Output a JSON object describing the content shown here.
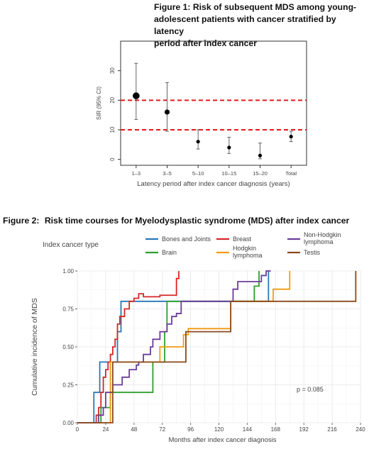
{
  "figure1": {
    "title_lines": [
      "Figure 1: Risk of subsequent MDS among young-",
      "adolescent patients with cancer stratified by latency",
      "period after index cancer"
    ]
  },
  "figure2": {
    "title_prefix": "Figure 2:",
    "title_text": "Risk time courses for Myelodysplastic syndrome (MDS) after index cancer",
    "legend_title": "Index cancer type",
    "p_value_label": "p = 0.085"
  },
  "colors": {
    "bones_and_joints": "#2878b5",
    "breast": "#d62728",
    "brain": "#2ca02c",
    "hodgkin": "#f39c12",
    "non_hodgkin": "#6a3d9a",
    "testis": "#8c4a1c",
    "reference_line": "#e41a1c",
    "grid": "#e6e6e6"
  },
  "chart_data": [
    {
      "type": "scatter",
      "xlabel": "Latency period after index cancer diagnosis (years)",
      "ylabel": "SIR (95% CI)",
      "categories": [
        "1–3",
        "3–5",
        "5–10",
        "10–15",
        "15–20",
        "Total"
      ],
      "values": [
        21.5,
        16,
        6,
        4,
        1.3,
        7.7
      ],
      "ci_lower": [
        13.5,
        9.5,
        3.5,
        2,
        0.2,
        6
      ],
      "ci_upper": [
        32.5,
        26,
        10,
        7.5,
        5.5,
        9.5
      ],
      "point_size": [
        3,
        2,
        1,
        1,
        1,
        1
      ],
      "reference_lines": [
        10,
        20
      ],
      "ylim": [
        -2,
        40
      ],
      "yticks": [
        0,
        10,
        20,
        30
      ],
      "grid": false
    },
    {
      "type": "line",
      "step": true,
      "xlabel": "Months after index cancer diagnosis",
      "ylabel": "Cumulative incidence of MDS",
      "xlim": [
        0,
        240
      ],
      "ylim": [
        0,
        1
      ],
      "xticks": [
        0,
        24,
        48,
        72,
        96,
        120,
        144,
        168,
        192,
        216,
        240
      ],
      "yticks": [
        0.0,
        0.25,
        0.5,
        0.75,
        1.0
      ],
      "ytick_labels": [
        "0.00",
        "0.25",
        "0.50",
        "0.75",
        "1.00"
      ],
      "grid": true,
      "legend_position": "top",
      "series": [
        {
          "name": "Bones and Joints",
          "color_key": "bones_and_joints",
          "x": [
            0,
            14,
            19,
            22,
            34,
            37,
            162
          ],
          "y": [
            0,
            0.2,
            0.4,
            0.4,
            0.6,
            0.8,
            1.0
          ]
        },
        {
          "name": "Breast",
          "color_key": "breast",
          "x": [
            0,
            16,
            18,
            20,
            22,
            24,
            26,
            28,
            30,
            32,
            34,
            36,
            40,
            44,
            48,
            52,
            56,
            70,
            84,
            86
          ],
          "y": [
            0,
            0.05,
            0.1,
            0.2,
            0.3,
            0.35,
            0.4,
            0.45,
            0.5,
            0.55,
            0.65,
            0.7,
            0.75,
            0.8,
            0.82,
            0.85,
            0.83,
            0.84,
            0.95,
            1.0
          ]
        },
        {
          "name": "Brain",
          "color_key": "brain",
          "x": [
            0,
            20,
            28,
            64,
            74,
            76,
            150,
            154
          ],
          "y": [
            0,
            0.1,
            0.2,
            0.4,
            0.6,
            0.8,
            0.9,
            1.0
          ]
        },
        {
          "name": "Hodgkin lymphoma",
          "color_key": "hodgkin",
          "x": [
            0,
            28,
            70,
            90,
            94,
            130,
            152,
            166,
            180
          ],
          "y": [
            0,
            0.4,
            0.5,
            0.58,
            0.62,
            0.8,
            0.8,
            0.88,
            1.0
          ]
        },
        {
          "name": "Non-Hodgkin lymphoma",
          "color_key": "non_hodgkin",
          "x": [
            0,
            18,
            22,
            24,
            30,
            38,
            44,
            50,
            52,
            56,
            62,
            64,
            70,
            76,
            80,
            84,
            88,
            110,
            132,
            136,
            156,
            160,
            164
          ],
          "y": [
            0,
            0.05,
            0.1,
            0.2,
            0.25,
            0.3,
            0.35,
            0.38,
            0.4,
            0.45,
            0.5,
            0.55,
            0.6,
            0.65,
            0.7,
            0.72,
            0.8,
            0.8,
            0.88,
            0.93,
            0.97,
            1.0,
            1.0
          ]
        },
        {
          "name": "Testis",
          "color_key": "testis",
          "x": [
            0,
            30,
            92,
            130,
            234,
            236
          ],
          "y": [
            0,
            0.4,
            0.6,
            0.8,
            0.8,
            1.0
          ]
        }
      ]
    }
  ]
}
